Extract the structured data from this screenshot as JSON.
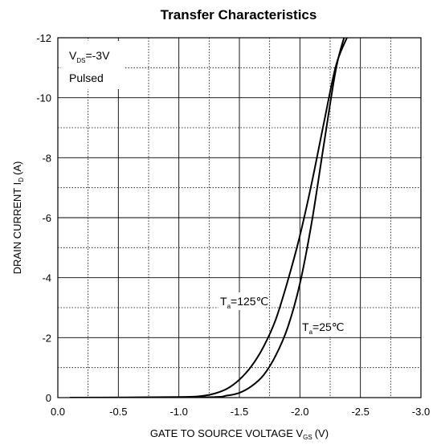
{
  "chart_data": {
    "type": "line",
    "title": "Transfer Characteristics",
    "xlabel_main": "GATE TO SOURCE VOLTAGE V",
    "xlabel_sub": "GS",
    "xlabel_unit": "(V)",
    "ylabel_main": "DRAIN CURRENT I",
    "ylabel_sub": "D",
    "ylabel_unit": "(A)",
    "xlim": [
      0,
      -3
    ],
    "ylim": [
      0,
      -12
    ],
    "x_ticks": [
      "0.0",
      "-0.5",
      "-1.0",
      "-1.5",
      "-2.0",
      "-2.5",
      "-3.0"
    ],
    "y_ticks": [
      "0",
      "-2",
      "-4",
      "-6",
      "-8",
      "-10",
      "-12"
    ],
    "x_tick_values": [
      0,
      -0.5,
      -1.0,
      -1.5,
      -2.0,
      -2.5,
      -3.0
    ],
    "y_tick_values": [
      0,
      -2,
      -4,
      -6,
      -8,
      -10,
      -12
    ],
    "grid": true,
    "conditions": {
      "vds_main": "V",
      "vds_sub": "DS",
      "vds_value": "=-3V",
      "pulsed": "Pulsed"
    },
    "series": [
      {
        "label_main": "T",
        "label_sub": "a",
        "label_value": "=125℃",
        "x": [
          -0.1,
          -1.0,
          -1.2,
          -1.3,
          -1.4,
          -1.5,
          -1.6,
          -1.7,
          -1.8,
          -1.9,
          -2.0,
          -2.1,
          -2.2,
          -2.3,
          -2.4
        ],
        "y": [
          0,
          -0.02,
          -0.06,
          -0.14,
          -0.3,
          -0.6,
          -1.05,
          -1.7,
          -2.6,
          -3.9,
          -5.4,
          -7.2,
          -9.2,
          -11.1,
          -12.1
        ]
      },
      {
        "label_main": "T",
        "label_sub": "a",
        "label_value": "=25℃",
        "x": [
          -0.1,
          -1.2,
          -1.4,
          -1.5,
          -1.6,
          -1.7,
          -1.8,
          -1.9,
          -2.0,
          -2.1,
          -2.2,
          -2.3,
          -2.38
        ],
        "y": [
          0,
          -0.01,
          -0.07,
          -0.16,
          -0.38,
          -0.75,
          -1.4,
          -2.35,
          -3.8,
          -5.9,
          -8.5,
          -11.0,
          -12.2
        ]
      }
    ]
  }
}
